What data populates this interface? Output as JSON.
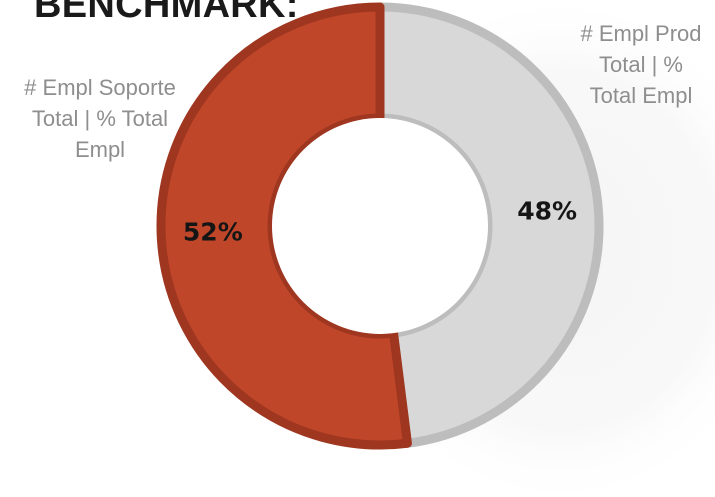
{
  "header": {
    "title": "BENCHMARK:"
  },
  "colors": {
    "soporte": "#c0462a",
    "soporte_edge": "#9e3620",
    "prod": "#d8d8d8",
    "prod_edge": "#bdbdbd",
    "background_glow": "#f3f3f3"
  },
  "chart_data": {
    "type": "pie",
    "donut": true,
    "title": "BENCHMARK:",
    "series": [
      {
        "name": "# Empl Prod Total | % Total Empl",
        "value": 48,
        "label": "48%",
        "color": "#d8d8d8"
      },
      {
        "name": "# Empl Soporte Total | % Total Empl",
        "value": 52,
        "label": "52%",
        "color": "#c0462a"
      }
    ]
  },
  "legend": {
    "left_lines": [
      "# Empl Soporte",
      "Total | % Total",
      "Empl"
    ],
    "right_lines": [
      "# Empl Prod",
      "Total | %",
      "Total Empl"
    ]
  }
}
